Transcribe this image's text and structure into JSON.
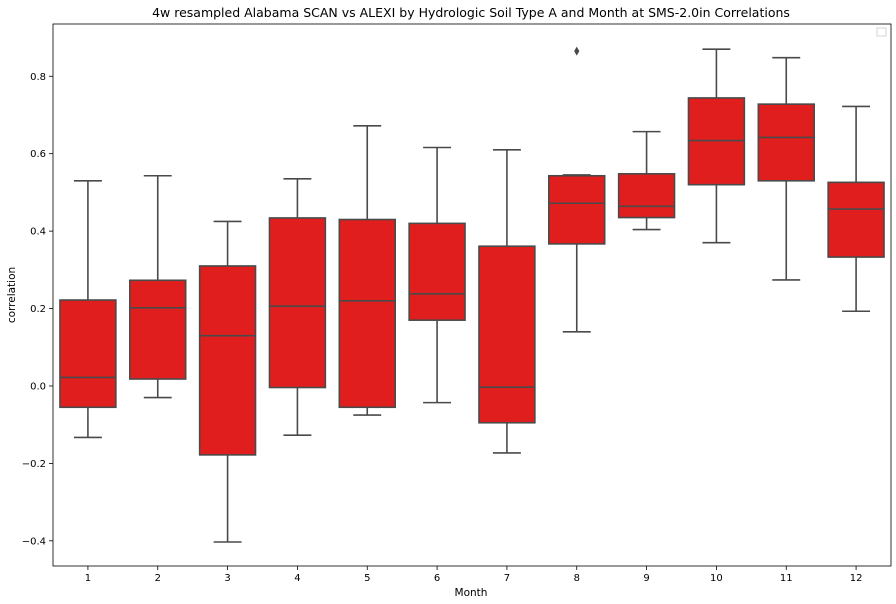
{
  "chart_data": {
    "type": "box",
    "title": "4w resampled Alabama SCAN vs ALEXI by Hydrologic Soil Type A and Month at SMS-2.0in Correlations",
    "xlabel": "Month",
    "ylabel": "correlation",
    "ylim": [
      -0.465,
      0.935
    ],
    "yticks": [
      "−0.4",
      "−0.2",
      "0.0",
      "0.2",
      "0.4",
      "0.6",
      "0.8"
    ],
    "ytick_values": [
      -0.4,
      -0.2,
      0.0,
      0.2,
      0.4,
      0.6,
      0.8
    ],
    "categories": [
      "1",
      "2",
      "3",
      "4",
      "5",
      "6",
      "7",
      "8",
      "9",
      "10",
      "11",
      "12"
    ],
    "box_color": "#e01e1e",
    "line_color": "#4a4a4a",
    "legend": "top-right (empty)",
    "grid": false,
    "boxes": [
      {
        "whisker_low": -0.133,
        "q1": -0.055,
        "median": 0.022,
        "q3": 0.222,
        "whisker_high": 0.53,
        "outliers": []
      },
      {
        "whisker_low": -0.03,
        "q1": 0.018,
        "median": 0.202,
        "q3": 0.273,
        "whisker_high": 0.543,
        "outliers": []
      },
      {
        "whisker_low": -0.403,
        "q1": -0.178,
        "median": 0.13,
        "q3": 0.31,
        "whisker_high": 0.425,
        "outliers": []
      },
      {
        "whisker_low": -0.127,
        "q1": -0.004,
        "median": 0.206,
        "q3": 0.434,
        "whisker_high": 0.535,
        "outliers": []
      },
      {
        "whisker_low": -0.075,
        "q1": -0.055,
        "median": 0.22,
        "q3": 0.43,
        "whisker_high": 0.672,
        "outliers": []
      },
      {
        "whisker_low": -0.043,
        "q1": 0.17,
        "median": 0.238,
        "q3": 0.42,
        "whisker_high": 0.616,
        "outliers": []
      },
      {
        "whisker_low": -0.173,
        "q1": -0.095,
        "median": -0.003,
        "q3": 0.361,
        "whisker_high": 0.61,
        "outliers": []
      },
      {
        "whisker_low": 0.14,
        "q1": 0.367,
        "median": 0.472,
        "q3": 0.543,
        "whisker_high": 0.545,
        "outliers": [
          0.865
        ]
      },
      {
        "whisker_low": 0.404,
        "q1": 0.435,
        "median": 0.464,
        "q3": 0.548,
        "whisker_high": 0.657,
        "outliers": []
      },
      {
        "whisker_low": 0.37,
        "q1": 0.52,
        "median": 0.634,
        "q3": 0.744,
        "whisker_high": 0.87,
        "outliers": []
      },
      {
        "whisker_low": 0.274,
        "q1": 0.53,
        "median": 0.642,
        "q3": 0.728,
        "whisker_high": 0.848,
        "outliers": []
      },
      {
        "whisker_low": 0.193,
        "q1": 0.333,
        "median": 0.457,
        "q3": 0.526,
        "whisker_high": 0.722,
        "outliers": []
      }
    ]
  }
}
